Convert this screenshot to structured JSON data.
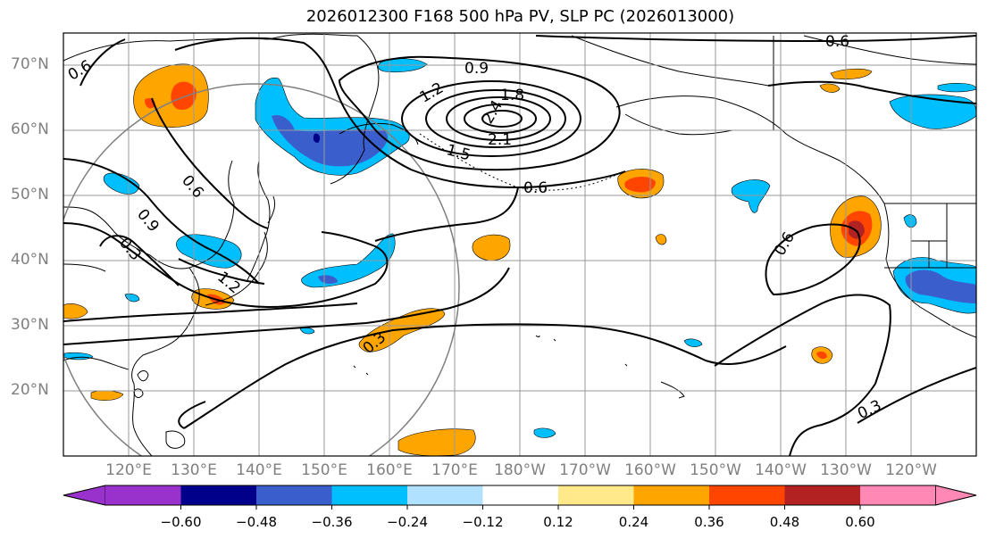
{
  "title": "2026012300 F168 500 hPa PV, SLP PC (2026013000)",
  "lat_labels": [
    "70°N",
    "60°N",
    "50°N",
    "40°N",
    "30°N",
    "20°N"
  ],
  "lon_labels": [
    "120°E",
    "130°E",
    "140°E",
    "150°E",
    "160°E",
    "170°E",
    "180°W",
    "170°W",
    "160°W",
    "150°W",
    "140°W",
    "130°W",
    "120°W"
  ],
  "colorbar": {
    "ticks": [
      "−0.60",
      "−0.48",
      "−0.36",
      "−0.24",
      "−0.12",
      "0.12",
      "0.24",
      "0.36",
      "0.48",
      "0.60"
    ],
    "colors": [
      "#9932cc",
      "#00008b",
      "#3a5fcd",
      "#00bfff",
      "#b0e2ff",
      "#ffffff",
      "#ffe98a",
      "#ffa500",
      "#ff4500",
      "#b22222",
      "#ff88b4"
    ]
  },
  "contour_labels": [
    "0.6",
    "0.9",
    "1.2",
    "1.8",
    "2.1",
    "1.5",
    "0.6",
    "0.6",
    "0.9",
    "0.3",
    "1.2",
    "0.3",
    "0.6",
    "0.3",
    "0.6",
    "2.4"
  ]
}
